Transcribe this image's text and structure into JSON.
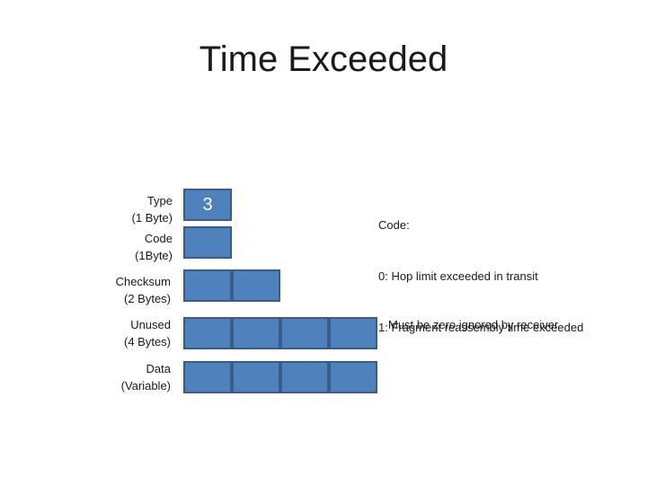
{
  "title": "Time Exceeded",
  "fields": {
    "type_label": "Type",
    "type_size": "(1 Byte)",
    "type_value": "3",
    "code_label": "Code",
    "code_size": "(1Byte)",
    "checksum_label": "Checksum",
    "checksum_size": "(2 Bytes)",
    "unused_label": "Unused",
    "unused_size": "(4 Bytes)",
    "data_label": "Data",
    "data_size": "(Variable)"
  },
  "notes": {
    "code_heading": "Code:",
    "code_0": "0: Hop limit exceeded in transit",
    "code_1": "1: Fragment reassembly time exceeded",
    "unused": "Must be zero ignored by receiver"
  },
  "colors": {
    "box_fill": "#4f81bd",
    "box_border": "#385d8a"
  }
}
